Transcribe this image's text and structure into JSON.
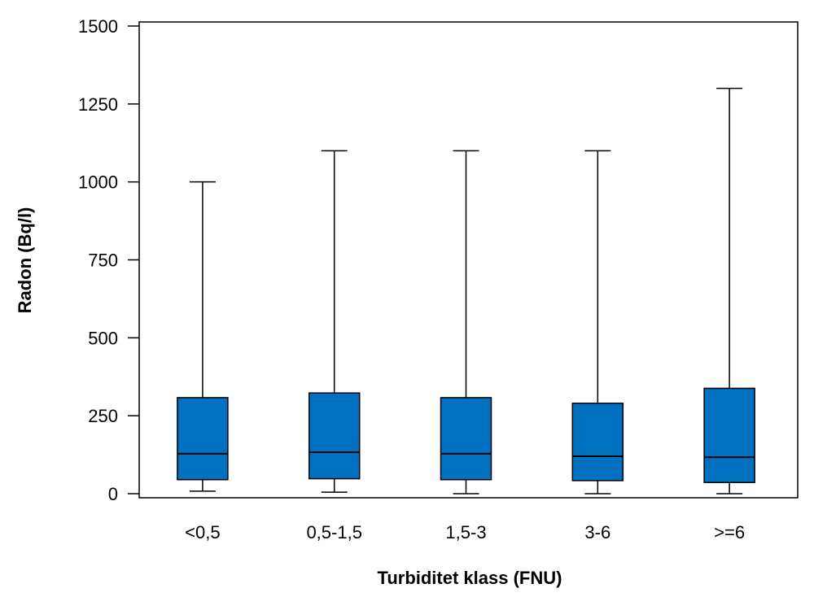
{
  "chart_data": {
    "type": "box",
    "title": "",
    "xlabel": "Turbiditet klass (FNU)",
    "ylabel": "Radon (Bq/l)",
    "ylim": [
      0,
      1500
    ],
    "yticks": [
      0,
      250,
      500,
      750,
      1000,
      1250,
      1500
    ],
    "categories": [
      "<0,5",
      "0,5-1,5",
      "1,5-3",
      "3-6",
      ">=6"
    ],
    "boxes": [
      {
        "min": 8,
        "q1": 45,
        "median": 128,
        "q3": 308,
        "max": 1000
      },
      {
        "min": 5,
        "q1": 48,
        "median": 133,
        "q3": 323,
        "max": 1100
      },
      {
        "min": 0,
        "q1": 45,
        "median": 128,
        "q3": 308,
        "max": 1100
      },
      {
        "min": 0,
        "q1": 42,
        "median": 120,
        "q3": 290,
        "max": 1100
      },
      {
        "min": 0,
        "q1": 36,
        "median": 117,
        "q3": 338,
        "max": 1300
      }
    ],
    "grid": false,
    "legend": "none",
    "box_color": "#0070C0",
    "line_color": "#000000"
  }
}
